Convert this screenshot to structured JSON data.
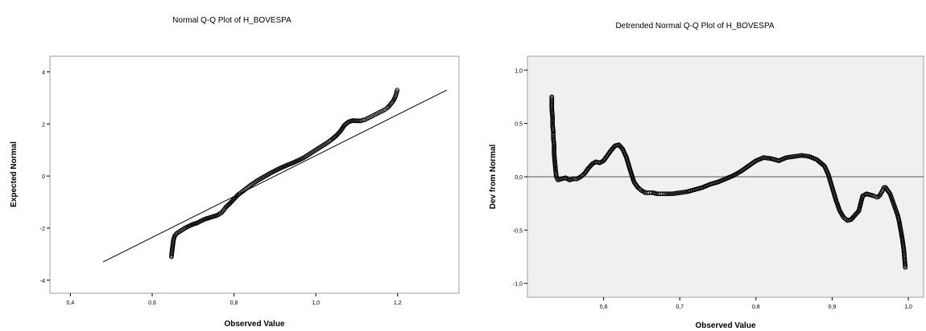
{
  "chart_data": [
    {
      "type": "scatter",
      "title": "Normal Q-Q Plot of H_BOVESPA",
      "xlabel": "Observed Value",
      "ylabel": "Expected Normal",
      "xlim": [
        0.35,
        1.35
      ],
      "ylim": [
        -4.5,
        4.6
      ],
      "x_ticks": [
        {
          "value": 0.4,
          "label": "0,4"
        },
        {
          "value": 0.6,
          "label": "0,6"
        },
        {
          "value": 0.8,
          "label": "0,8"
        },
        {
          "value": 1.0,
          "label": "1,0"
        },
        {
          "value": 1.2,
          "label": "1,2"
        }
      ],
      "y_ticks": [
        {
          "value": -4,
          "label": "-4"
        },
        {
          "value": -2,
          "label": "-2"
        },
        {
          "value": 0,
          "label": "0"
        },
        {
          "value": 2,
          "label": "2"
        },
        {
          "value": 4,
          "label": "4"
        }
      ],
      "reference_line": {
        "x": [
          0.48,
          1.32
        ],
        "y": [
          -3.3,
          3.3
        ]
      },
      "series": [
        {
          "marker": "open-circle",
          "x": [
            0.647,
            0.648,
            0.65,
            0.652,
            0.655,
            0.66,
            0.67,
            0.68,
            0.69,
            0.7,
            0.71,
            0.72,
            0.73,
            0.74,
            0.75,
            0.76,
            0.77,
            0.775,
            0.78,
            0.79,
            0.8,
            0.81,
            0.82,
            0.83,
            0.84,
            0.85,
            0.86,
            0.87,
            0.88,
            0.89,
            0.9,
            0.91,
            0.92,
            0.93,
            0.94,
            0.95,
            0.96,
            0.97,
            0.98,
            0.99,
            1.0,
            1.01,
            1.02,
            1.03,
            1.04,
            1.05,
            1.06,
            1.07,
            1.08,
            1.09,
            1.1,
            1.11,
            1.115,
            1.12,
            1.125,
            1.13,
            1.135,
            1.14,
            1.145,
            1.15,
            1.155,
            1.16,
            1.165,
            1.17,
            1.175,
            1.18,
            1.185,
            1.19,
            1.193,
            1.196,
            1.199
          ],
          "y": [
            -3.1,
            -2.95,
            -2.7,
            -2.45,
            -2.3,
            -2.2,
            -2.1,
            -2.0,
            -1.92,
            -1.85,
            -1.8,
            -1.72,
            -1.65,
            -1.6,
            -1.55,
            -1.5,
            -1.4,
            -1.3,
            -1.2,
            -1.05,
            -0.88,
            -0.72,
            -0.6,
            -0.48,
            -0.36,
            -0.25,
            -0.15,
            -0.06,
            0.03,
            0.12,
            0.2,
            0.28,
            0.35,
            0.42,
            0.48,
            0.55,
            0.62,
            0.7,
            0.8,
            0.9,
            1.0,
            1.1,
            1.2,
            1.3,
            1.42,
            1.55,
            1.72,
            1.95,
            2.08,
            2.13,
            2.12,
            2.12,
            2.15,
            2.16,
            2.2,
            2.24,
            2.28,
            2.32,
            2.36,
            2.4,
            2.44,
            2.48,
            2.52,
            2.56,
            2.62,
            2.7,
            2.8,
            2.9,
            3.0,
            3.12,
            3.3
          ]
        }
      ]
    },
    {
      "type": "scatter",
      "title": "Detrended Normal Q-Q Plot of H_BOVESPA",
      "xlabel": "Observed Value",
      "ylabel": "Dev from Normal",
      "xlim": [
        0.5,
        1.02
      ],
      "ylim": [
        -1.13,
        1.13
      ],
      "x_ticks": [
        {
          "value": 0.6,
          "label": "0,6"
        },
        {
          "value": 0.7,
          "label": "0,7"
        },
        {
          "value": 0.8,
          "label": "0,8"
        },
        {
          "value": 0.9,
          "label": "0,9"
        },
        {
          "value": 1.0,
          "label": "1,0"
        }
      ],
      "y_ticks": [
        {
          "value": -1.0,
          "label": "-1,0"
        },
        {
          "value": -0.5,
          "label": "-0,5"
        },
        {
          "value": 0.0,
          "label": "0,0"
        },
        {
          "value": 0.5,
          "label": "0,5"
        },
        {
          "value": 1.0,
          "label": "1,0"
        }
      ],
      "reference_line": {
        "y": 0.0
      },
      "series": [
        {
          "marker": "open-circle",
          "x": [
            0.532,
            0.532,
            0.533,
            0.533,
            0.534,
            0.534,
            0.535,
            0.535,
            0.536,
            0.537,
            0.538,
            0.54,
            0.545,
            0.55,
            0.555,
            0.56,
            0.565,
            0.57,
            0.575,
            0.58,
            0.585,
            0.59,
            0.595,
            0.6,
            0.605,
            0.61,
            0.615,
            0.62,
            0.625,
            0.63,
            0.635,
            0.64,
            0.645,
            0.65,
            0.655,
            0.66,
            0.665,
            0.67,
            0.675,
            0.68,
            0.69,
            0.7,
            0.71,
            0.72,
            0.73,
            0.74,
            0.75,
            0.76,
            0.77,
            0.78,
            0.79,
            0.8,
            0.81,
            0.82,
            0.83,
            0.84,
            0.85,
            0.86,
            0.87,
            0.88,
            0.89,
            0.895,
            0.9,
            0.905,
            0.91,
            0.915,
            0.92,
            0.925,
            0.93,
            0.935,
            0.94,
            0.945,
            0.955,
            0.958,
            0.96,
            0.963,
            0.966,
            0.968,
            0.97,
            0.972,
            0.974,
            0.976,
            0.978,
            0.98,
            0.982,
            0.984,
            0.986,
            0.988,
            0.99,
            0.992,
            0.994,
            0.996
          ],
          "y": [
            0.75,
            0.64,
            0.55,
            0.48,
            0.42,
            0.36,
            0.3,
            0.22,
            0.14,
            0.06,
            0.0,
            -0.03,
            -0.02,
            -0.01,
            -0.03,
            -0.02,
            -0.02,
            0.0,
            0.03,
            0.08,
            0.12,
            0.14,
            0.13,
            0.15,
            0.2,
            0.25,
            0.29,
            0.3,
            0.26,
            0.18,
            0.06,
            -0.05,
            -0.1,
            -0.13,
            -0.15,
            -0.15,
            -0.15,
            -0.16,
            -0.16,
            -0.16,
            -0.16,
            -0.15,
            -0.14,
            -0.12,
            -0.1,
            -0.07,
            -0.05,
            -0.02,
            0.01,
            0.05,
            0.1,
            0.15,
            0.18,
            0.17,
            0.15,
            0.18,
            0.19,
            0.2,
            0.19,
            0.16,
            0.1,
            0.02,
            -0.1,
            -0.22,
            -0.32,
            -0.38,
            -0.41,
            -0.4,
            -0.36,
            -0.32,
            -0.18,
            -0.16,
            -0.18,
            -0.19,
            -0.19,
            -0.17,
            -0.13,
            -0.1,
            -0.1,
            -0.12,
            -0.14,
            -0.16,
            -0.2,
            -0.24,
            -0.28,
            -0.32,
            -0.36,
            -0.42,
            -0.5,
            -0.58,
            -0.68,
            -0.85
          ]
        }
      ]
    }
  ]
}
